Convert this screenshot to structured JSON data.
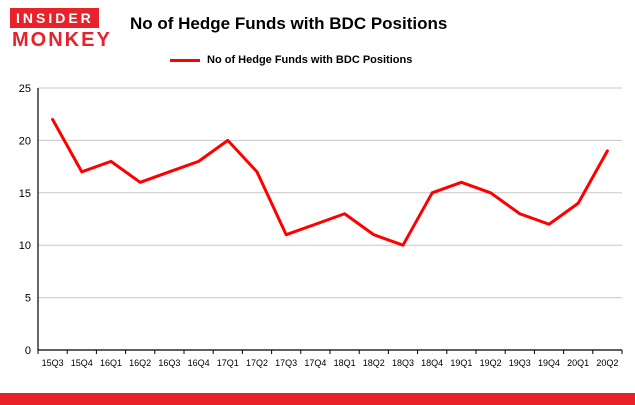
{
  "logo": {
    "line1": "INSIDER",
    "line2": "MONKEY"
  },
  "header": {
    "title": "No of Hedge Funds with BDC Positions"
  },
  "legend": {
    "label": "No of Hedge Funds with BDC Positions"
  },
  "colors": {
    "line": "#ff0000",
    "brand_red": "#e8212b",
    "grid": "#c8c8c8",
    "axis": "#000000"
  },
  "chart_data": {
    "type": "line",
    "title": "No of Hedge Funds with BDC Positions",
    "categories": [
      "15Q3",
      "15Q4",
      "16Q1",
      "16Q2",
      "16Q3",
      "16Q4",
      "17Q1",
      "17Q2",
      "17Q3",
      "17Q4",
      "18Q1",
      "18Q2",
      "18Q3",
      "18Q4",
      "19Q1",
      "19Q2",
      "19Q3",
      "19Q4",
      "20Q1",
      "20Q2"
    ],
    "values": [
      22,
      17,
      18,
      16,
      17,
      18,
      20,
      17,
      11,
      12,
      13,
      11,
      10,
      15,
      16,
      15,
      13,
      12,
      14,
      19
    ],
    "xlabel": "",
    "ylabel": "",
    "ylim": [
      0,
      25
    ],
    "yticks": [
      0,
      5,
      10,
      15,
      20,
      25
    ],
    "grid": true,
    "legend_position": "top",
    "line_color": "#ff0000"
  }
}
